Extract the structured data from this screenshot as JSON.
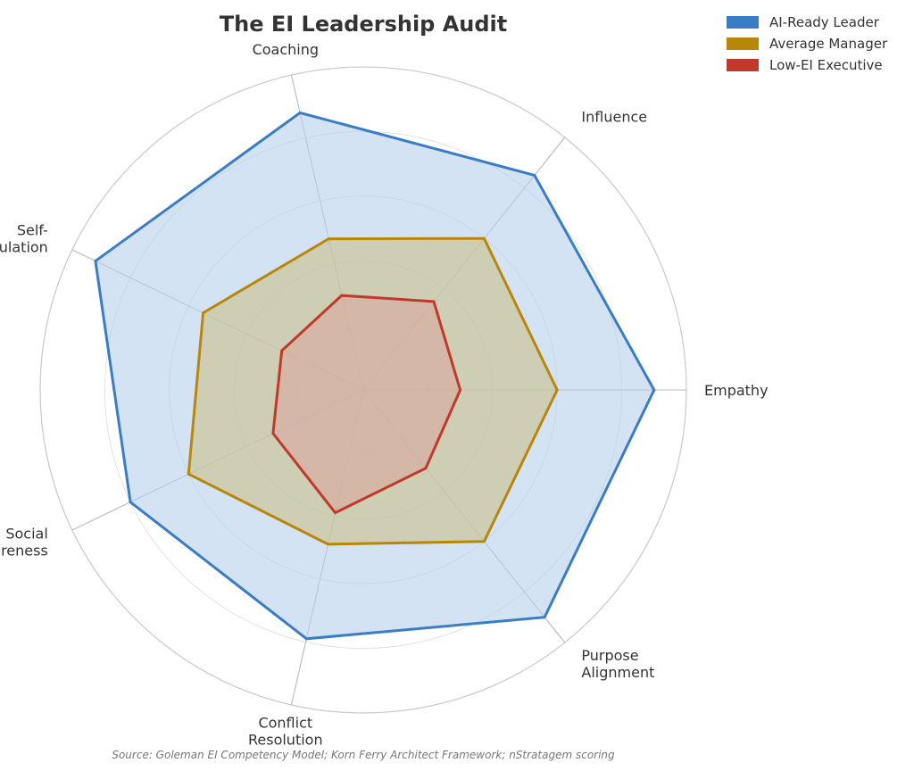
{
  "chart_data": {
    "type": "radar",
    "title": "The EI Leadership Audit",
    "axes": [
      "Empathy",
      "Influence",
      "Coaching",
      "Self-Regulation",
      "Social Awareness",
      "Conflict Resolution",
      "Purpose Alignment"
    ],
    "axis_labels": [
      [
        "Empathy"
      ],
      [
        "Influence"
      ],
      [
        "Coaching"
      ],
      [
        "Self-",
        "Regulation"
      ],
      [
        "Social",
        "Awareness"
      ],
      [
        "Conflict",
        "Resolution"
      ],
      [
        "Purpose",
        "Alignment"
      ]
    ],
    "rlim": [
      0,
      10
    ],
    "grid_rings": [
      2,
      4,
      6,
      8,
      10
    ],
    "grid": true,
    "legend_position": "top-right",
    "series": [
      {
        "name": "AI-Ready Leader",
        "color": "#3b7dc4",
        "fill": "#b8d1eb",
        "values": [
          9,
          8.5,
          8.8,
          9.2,
          8,
          7.9,
          9
        ]
      },
      {
        "name": "Average Manager",
        "color": "#b8860b",
        "fill": "#c9c08c",
        "values": [
          6,
          6,
          4.8,
          5.5,
          6,
          4.9,
          6
        ]
      },
      {
        "name": "Low-EI Executive",
        "color": "#c0392b",
        "fill": "#d9a89d",
        "values": [
          3,
          3.5,
          3,
          2.8,
          3.1,
          3.9,
          3.1
        ]
      }
    ],
    "source": "Source: Goleman EI Competency Model; Korn Ferry Architect Framework; nStratagem scoring"
  }
}
